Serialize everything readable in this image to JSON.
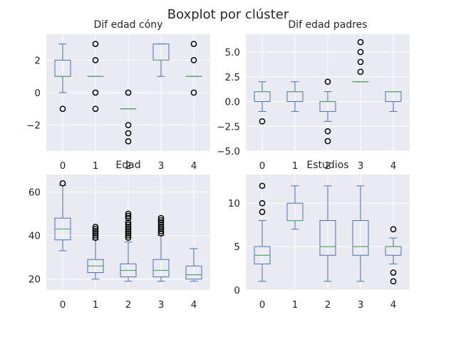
{
  "chart_data": {
    "type": "boxplot",
    "title": "Boxplot por clúster",
    "style": {
      "background": "#eaeaf2",
      "grid": "#ffffff",
      "box_color": "#4c72b0",
      "median_color": "#55a868",
      "flier_color": "#000000"
    },
    "grid": true,
    "panels": [
      {
        "title": "Dif edad cóny",
        "categories": [
          "0",
          "1",
          "2",
          "3",
          "4"
        ],
        "ylim": [
          -3.6,
          3.6
        ],
        "yticks": [
          -2,
          0,
          2
        ],
        "yticklabels": [
          "−2",
          "0",
          "2"
        ],
        "boxes": [
          {
            "whislo": 0,
            "q1": 1,
            "med": 1,
            "q3": 2,
            "whishi": 3,
            "fliers": [
              -1
            ]
          },
          {
            "whislo": 1,
            "q1": 1,
            "med": 1,
            "q3": 1,
            "whishi": 1,
            "fliers": [
              -1,
              0,
              2,
              3
            ]
          },
          {
            "whislo": -1,
            "q1": -1,
            "med": -1,
            "q3": -1,
            "whishi": -1,
            "fliers": [
              -3,
              -2.5,
              -2,
              0
            ]
          },
          {
            "whislo": 1,
            "q1": 2,
            "med": 2,
            "q3": 3,
            "whishi": 3,
            "fliers": []
          },
          {
            "whislo": 1,
            "q1": 1,
            "med": 1,
            "q3": 1,
            "whishi": 1,
            "fliers": [
              0,
              2,
              3
            ]
          }
        ]
      },
      {
        "title": "Dif edad padres",
        "categories": [
          "0",
          "1",
          "2",
          "3",
          "4"
        ],
        "ylim": [
          -5,
          6.8
        ],
        "yticks": [
          -5,
          -2.5,
          0,
          2.5,
          5
        ],
        "yticklabels": [
          "−5.0",
          "−2.5",
          "0.0",
          "2.5",
          "5.0"
        ],
        "boxes": [
          {
            "whislo": -1,
            "q1": 0,
            "med": 1,
            "q3": 1,
            "whishi": 2,
            "fliers": [
              -2
            ]
          },
          {
            "whislo": -1,
            "q1": 0,
            "med": 1,
            "q3": 1,
            "whishi": 2,
            "fliers": []
          },
          {
            "whislo": -2,
            "q1": -1,
            "med": 0,
            "q3": 0,
            "whishi": 1,
            "fliers": [
              -4,
              -3,
              2
            ]
          },
          {
            "whislo": 2,
            "q1": 2,
            "med": 2,
            "q3": 2,
            "whishi": 2,
            "fliers": [
              3,
              4,
              5,
              6
            ]
          },
          {
            "whislo": -1,
            "q1": 0,
            "med": 1,
            "q3": 1,
            "whishi": 1,
            "fliers": []
          }
        ]
      },
      {
        "title": "Edad",
        "categories": [
          "0",
          "1",
          "2",
          "3",
          "4"
        ],
        "ylim": [
          15,
          68
        ],
        "yticks": [
          20,
          40,
          60
        ],
        "yticklabels": [
          "20",
          "40",
          "60"
        ],
        "boxes": [
          {
            "whislo": 33,
            "q1": 38,
            "med": 43,
            "q3": 48,
            "whishi": 63,
            "fliers": [
              64
            ]
          },
          {
            "whislo": 20,
            "q1": 23,
            "med": 26,
            "q3": 29,
            "whishi": 38,
            "fliers": [
              39,
              40,
              41,
              42,
              43,
              44
            ]
          },
          {
            "whislo": 19,
            "q1": 21,
            "med": 24,
            "q3": 27,
            "whishi": 37,
            "fliers": [
              39,
              40,
              41,
              42,
              43,
              44,
              45,
              46,
              48,
              49,
              50
            ]
          },
          {
            "whislo": 19,
            "q1": 21,
            "med": 24,
            "q3": 29,
            "whishi": 40,
            "fliers": [
              41,
              42,
              43,
              44,
              45,
              46,
              47,
              48
            ]
          },
          {
            "whislo": 19,
            "q1": 20,
            "med": 22,
            "q3": 26,
            "whishi": 34,
            "fliers": []
          }
        ]
      },
      {
        "title": "Estudios",
        "categories": [
          "0",
          "1",
          "2",
          "3",
          "4"
        ],
        "ylim": [
          0,
          13.3
        ],
        "yticks": [
          0,
          5,
          10
        ],
        "yticklabels": [
          "0",
          "5",
          "10"
        ],
        "boxes": [
          {
            "whislo": 1,
            "q1": 3,
            "med": 4,
            "q3": 5,
            "whishi": 8,
            "fliers": [
              9,
              10,
              12
            ]
          },
          {
            "whislo": 7,
            "q1": 8,
            "med": 8,
            "q3": 10,
            "whishi": 12,
            "fliers": []
          },
          {
            "whislo": 1,
            "q1": 4,
            "med": 5,
            "q3": 8,
            "whishi": 12,
            "fliers": []
          },
          {
            "whislo": 1,
            "q1": 4,
            "med": 5,
            "q3": 8,
            "whishi": 12,
            "fliers": []
          },
          {
            "whislo": 3,
            "q1": 4,
            "med": 5,
            "q3": 5,
            "whishi": 6,
            "fliers": [
              1,
              2,
              7
            ]
          }
        ]
      }
    ]
  }
}
